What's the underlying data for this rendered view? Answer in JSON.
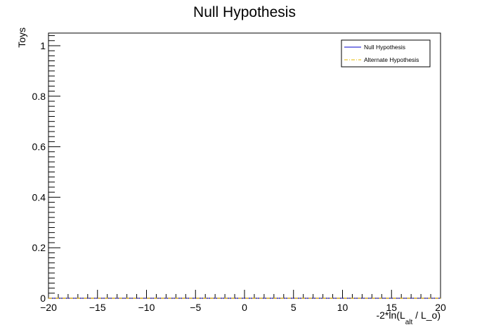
{
  "chart_data": {
    "type": "line",
    "title": "Null Hypothesis",
    "ylabel": "Toys",
    "xlabel": {
      "prefix": "-2*ln(L",
      "subscript": "alt",
      "suffix": " / L_o)"
    },
    "xlim": [
      -20,
      20
    ],
    "ylim": [
      0,
      1.05
    ],
    "x_ticks": [
      -20,
      -15,
      -10,
      -5,
      0,
      5,
      10,
      15,
      20
    ],
    "y_ticks": [
      0,
      0.2,
      0.4,
      0.6,
      0.8,
      1
    ],
    "x_tick_labels": [
      "−20",
      "−15",
      "−10",
      "−5",
      "0",
      "5",
      "10",
      "15",
      "20"
    ],
    "y_tick_labels": [
      "0",
      "0.2",
      "0.4",
      "0.6",
      "0.8",
      "1"
    ],
    "grid": false,
    "legend_position": "top-right",
    "series": [
      {
        "name": "Null Hypothesis",
        "color": "#0000cc",
        "style": "solid",
        "x": [
          -20,
          20
        ],
        "y": [
          0,
          0
        ]
      },
      {
        "name": "Alternate Hypothesis",
        "color": "#e6b800",
        "style": "dash-dot",
        "x": [
          -20,
          20
        ],
        "y": [
          0,
          0
        ]
      }
    ]
  }
}
